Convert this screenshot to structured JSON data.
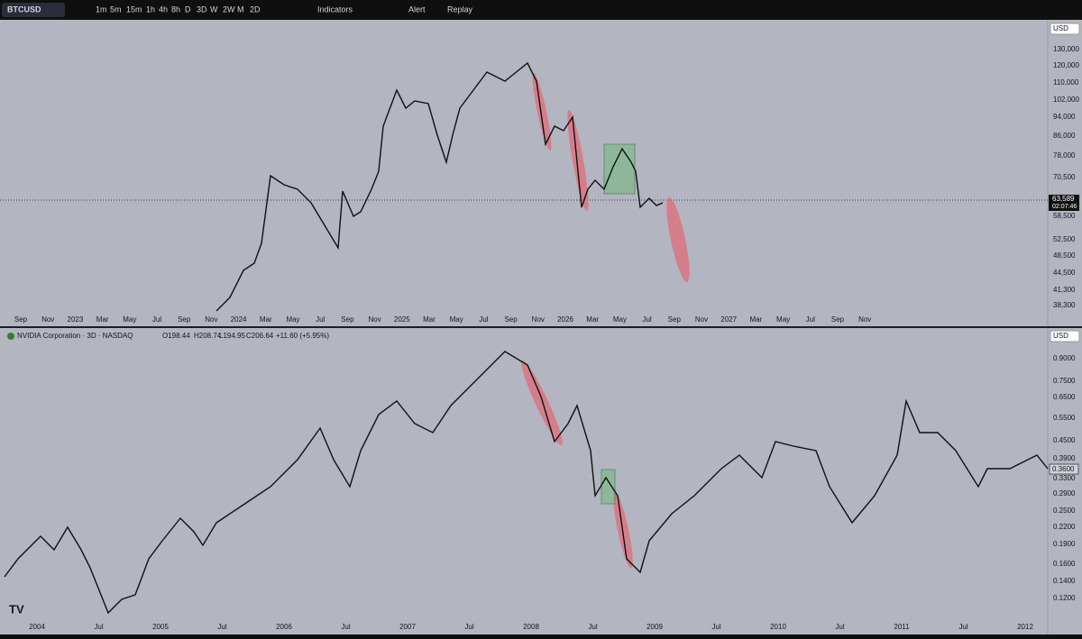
{
  "toolbar": {
    "symbol": "BTCUSD",
    "intervals": [
      "1m",
      "5m",
      "15m",
      "1h",
      "4h",
      "8h",
      "D",
      "3D",
      "W",
      "2W",
      "M",
      "2D"
    ],
    "indicators": "Indicators",
    "alert": "Alert",
    "replay": "Replay"
  },
  "top_pane": {
    "currency": "USD",
    "price_axis": [
      "130,000",
      "120,000",
      "110,000",
      "102,000",
      "94,000",
      "86,000",
      "78,000",
      "70,500",
      "58,500",
      "52,500",
      "48,500",
      "44,500",
      "41,300",
      "38,300"
    ],
    "last_price": "63,589",
    "countdown": "02:07:46",
    "time_axis": [
      "Sep",
      "Nov",
      "2023",
      "Mar",
      "May",
      "Jul",
      "Sep",
      "Nov",
      "2024",
      "Mar",
      "May",
      "Jul",
      "Sep",
      "Nov",
      "2025",
      "Mar",
      "May",
      "Jul",
      "Sep",
      "Nov",
      "2026",
      "Mar",
      "May",
      "Jul",
      "Sep",
      "Nov",
      "2027",
      "Mar",
      "May",
      "Jul",
      "Sep",
      "Nov"
    ]
  },
  "bottom_pane": {
    "title": "NVIDIA Corporation · 3D · NASDAQ",
    "ohlc": [
      "O198.44",
      "H208.74",
      "L194.95",
      "C206.64",
      "+11.60 (+5.95%)"
    ],
    "currency": "USD",
    "price_axis": [
      "0.9000",
      "0.7500",
      "0.6500",
      "0.5500",
      "0.4500",
      "0.3900",
      "0.3300",
      "0.2900",
      "0.2500",
      "0.2200",
      "0.1900",
      "0.1600",
      "0.1400",
      "0.1200"
    ],
    "last_price": "0.3600",
    "time_axis": [
      "2004",
      "Jul",
      "2005",
      "Jul",
      "2006",
      "Jul",
      "2007",
      "Jul",
      "2008",
      "Jul",
      "2009",
      "Jul",
      "2010",
      "Jul",
      "2011",
      "Jul",
      "2012"
    ]
  }
}
